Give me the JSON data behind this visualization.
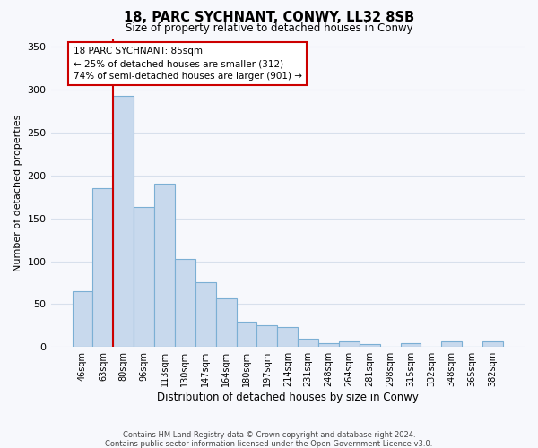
{
  "title": "18, PARC SYCHNANT, CONWY, LL32 8SB",
  "subtitle": "Size of property relative to detached houses in Conwy",
  "xlabel": "Distribution of detached houses by size in Conwy",
  "ylabel": "Number of detached properties",
  "bar_labels": [
    "46sqm",
    "63sqm",
    "80sqm",
    "96sqm",
    "113sqm",
    "130sqm",
    "147sqm",
    "164sqm",
    "180sqm",
    "197sqm",
    "214sqm",
    "231sqm",
    "248sqm",
    "264sqm",
    "281sqm",
    "298sqm",
    "315sqm",
    "332sqm",
    "348sqm",
    "365sqm",
    "382sqm"
  ],
  "bar_values": [
    65,
    185,
    293,
    163,
    190,
    103,
    76,
    57,
    30,
    25,
    23,
    10,
    5,
    7,
    3,
    0,
    5,
    0,
    7,
    0,
    7
  ],
  "bar_color": "#c8d9ed",
  "bar_edge_color": "#7bafd4",
  "property_line_label": "18 PARC SYCHNANT: 85sqm",
  "annotation_line1": "← 25% of detached houses are smaller (312)",
  "annotation_line2": "74% of semi-detached houses are larger (901) →",
  "annotation_box_color": "white",
  "annotation_box_edge": "#cc0000",
  "vline_color": "#cc0000",
  "ylim": [
    0,
    360
  ],
  "yticks": [
    0,
    50,
    100,
    150,
    200,
    250,
    300,
    350
  ],
  "footer1": "Contains HM Land Registry data © Crown copyright and database right 2024.",
  "footer2": "Contains public sector information licensed under the Open Government Licence v3.0.",
  "background_color": "#f7f8fc",
  "grid_color": "#d8e0ec"
}
